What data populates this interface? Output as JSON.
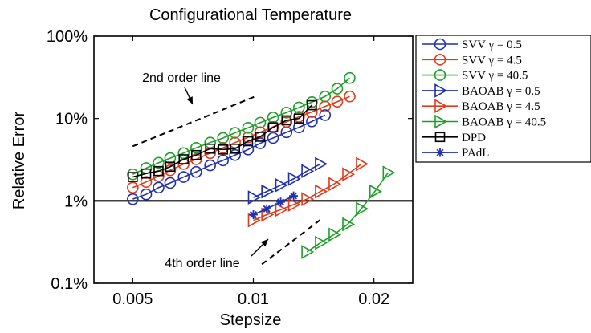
{
  "chart_data": {
    "type": "line",
    "title": "Configurational Temperature",
    "xlabel": "Stepsize",
    "ylabel": "Relative Error",
    "x_scale": "log",
    "y_scale": "log",
    "xlim": [
      0.004,
      0.025
    ],
    "ylim": [
      0.1,
      100
    ],
    "x_ticks": [
      {
        "value": 0.005,
        "label": "0.005"
      },
      {
        "value": 0.01,
        "label": "0.01"
      },
      {
        "value": 0.02,
        "label": "0.02"
      }
    ],
    "y_ticks": [
      {
        "value": 0.1,
        "label": "0.1%"
      },
      {
        "value": 1,
        "label": "1%"
      },
      {
        "value": 10,
        "label": "10%"
      },
      {
        "value": 100,
        "label": "100%"
      }
    ],
    "grid": false,
    "legend_position": "outside-right",
    "series": [
      {
        "name": "SVV γ = 0.5",
        "color": "#1f2fb0",
        "marker": "circle",
        "x": [
          0.005,
          0.0054,
          0.0058,
          0.0062,
          0.0067,
          0.0072,
          0.0078,
          0.0084,
          0.009,
          0.0097,
          0.0104,
          0.0112,
          0.0121,
          0.013,
          0.014,
          0.0151
        ],
        "y": [
          1.05,
          1.2,
          1.45,
          1.65,
          1.95,
          2.25,
          2.7,
          3.1,
          3.6,
          4.2,
          5.0,
          5.8,
          6.8,
          7.8,
          9.2,
          11.0
        ]
      },
      {
        "name": "SVV γ = 4.5",
        "color": "#e03a1a",
        "marker": "circle",
        "x": [
          0.005,
          0.0054,
          0.0058,
          0.0062,
          0.0067,
          0.0072,
          0.0078,
          0.0084,
          0.009,
          0.0097,
          0.0104,
          0.0112,
          0.0121,
          0.013,
          0.014,
          0.0151,
          0.0162,
          0.0174
        ],
        "y": [
          1.45,
          1.7,
          2.0,
          2.35,
          2.8,
          3.2,
          3.8,
          4.4,
          5.1,
          5.9,
          6.8,
          7.9,
          9.1,
          10.5,
          12.0,
          14.0,
          16.0,
          18.5
        ]
      },
      {
        "name": "SVV γ = 40.5",
        "color": "#1f9e2a",
        "marker": "circle",
        "x": [
          0.005,
          0.0054,
          0.0058,
          0.0062,
          0.0067,
          0.0072,
          0.0078,
          0.0084,
          0.009,
          0.0097,
          0.0104,
          0.0112,
          0.0121,
          0.013,
          0.014,
          0.0151,
          0.0162,
          0.0174
        ],
        "y": [
          2.1,
          2.5,
          2.9,
          3.3,
          3.8,
          4.4,
          5.1,
          5.8,
          6.7,
          7.7,
          8.9,
          10.3,
          11.8,
          13.6,
          15.8,
          18.5,
          23.0,
          31.0
        ]
      },
      {
        "name": "BAOAB γ = 0.5",
        "color": "#1f2fb0",
        "marker": "triangle-right",
        "x": [
          0.01,
          0.0108,
          0.0117,
          0.0126,
          0.0136,
          0.0147
        ],
        "y": [
          1.1,
          1.3,
          1.55,
          1.85,
          2.3,
          2.8
        ]
      },
      {
        "name": "BAOAB γ = 4.5",
        "color": "#e03a1a",
        "marker": "triangle-right",
        "x": [
          0.01,
          0.0108,
          0.0117,
          0.0126,
          0.0136,
          0.0147,
          0.0159,
          0.0172,
          0.0186
        ],
        "y": [
          0.58,
          0.68,
          0.78,
          0.9,
          1.05,
          1.3,
          1.6,
          2.1,
          2.8
        ]
      },
      {
        "name": "BAOAB γ = 40.5",
        "color": "#1f9e2a",
        "marker": "triangle-right",
        "x": [
          0.0136,
          0.0147,
          0.0159,
          0.0172,
          0.0186,
          0.0201,
          0.0217
        ],
        "y": [
          0.24,
          0.31,
          0.39,
          0.52,
          0.8,
          1.3,
          2.2
        ]
      },
      {
        "name": "DPD",
        "color": "#000000",
        "marker": "square",
        "x": [
          0.005,
          0.0054,
          0.0058,
          0.0062,
          0.0067,
          0.0072,
          0.0078,
          0.0084,
          0.009,
          0.0097,
          0.0104,
          0.0112,
          0.0121,
          0.013,
          0.014
        ],
        "y": [
          1.95,
          2.15,
          2.3,
          2.6,
          3.2,
          3.6,
          4.3,
          4.2,
          4.3,
          5.3,
          6.0,
          7.8,
          9.5,
          10.0,
          14.5
        ]
      },
      {
        "name": "PAdL",
        "color": "#1f2fb0",
        "marker": "asterisk",
        "x": [
          0.01,
          0.0108,
          0.0117,
          0.0126
        ],
        "y": [
          0.68,
          0.8,
          0.97,
          1.15
        ]
      }
    ],
    "reference_lines": [
      {
        "label": "2nd order line",
        "x": [
          0.005,
          0.0101
        ],
        "y": [
          4.6,
          18.5
        ]
      },
      {
        "label": "4th order line",
        "x": [
          0.0105,
          0.0149
        ],
        "y": [
          0.17,
          0.62
        ]
      },
      {
        "label": "",
        "x": [
          0.004,
          0.025
        ],
        "y": [
          1,
          1
        ]
      }
    ]
  }
}
